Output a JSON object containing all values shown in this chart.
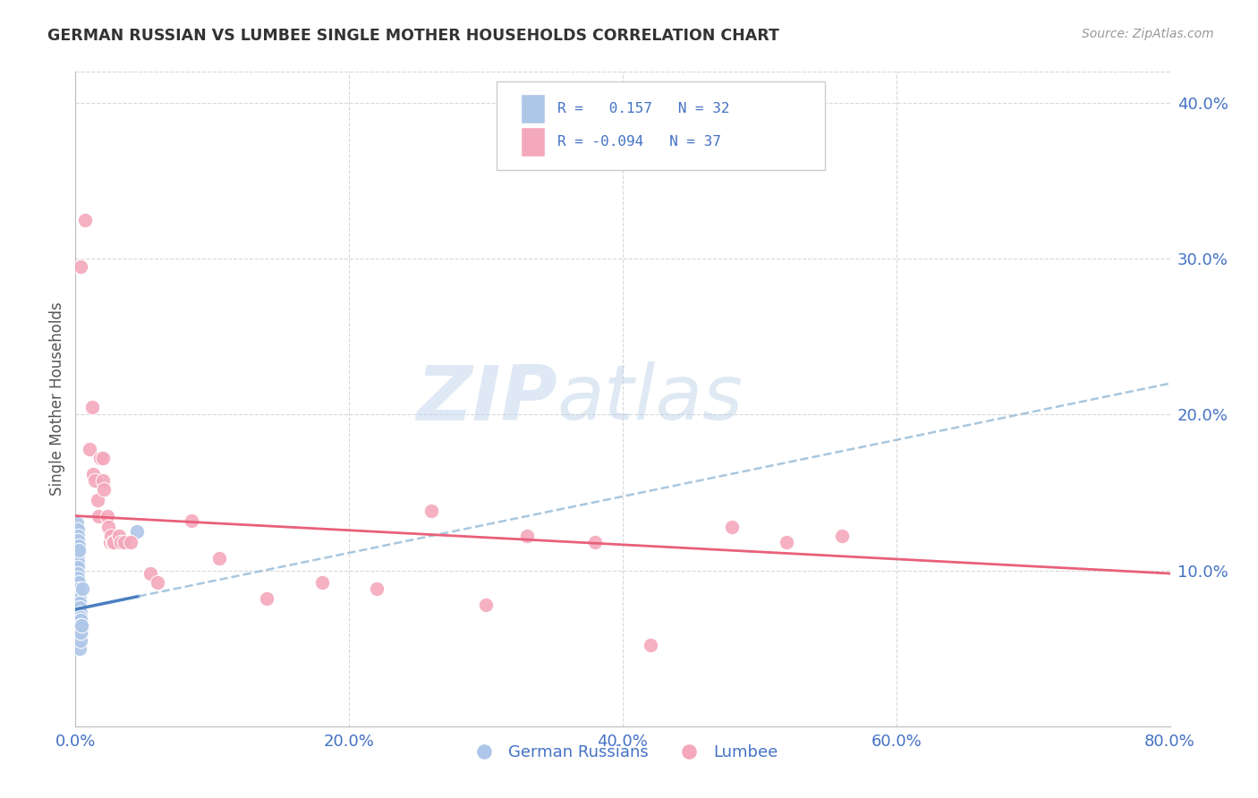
{
  "title": "GERMAN RUSSIAN VS LUMBEE SINGLE MOTHER HOUSEHOLDS CORRELATION CHART",
  "source": "Source: ZipAtlas.com",
  "ylabel": "Single Mother Households",
  "watermark_zip": "ZIP",
  "watermark_atlas": "atlas",
  "xlim": [
    0.0,
    0.8
  ],
  "ylim": [
    0.0,
    0.42
  ],
  "yticks": [
    0.1,
    0.2,
    0.3,
    0.4
  ],
  "ytick_labels": [
    "10.0%",
    "20.0%",
    "30.0%",
    "40.0%"
  ],
  "xticks": [
    0.0,
    0.2,
    0.4,
    0.6,
    0.8
  ],
  "legend_r_blue": "R =   0.157",
  "legend_n_blue": "N = 32",
  "legend_r_pink": "R = -0.094",
  "legend_n_pink": "N = 37",
  "blue_color": "#aec6e8",
  "pink_color": "#f4a8bc",
  "blue_line_color": "#4a7fc1",
  "blue_dash_color": "#9bbdd8",
  "pink_line_color": "#e8607a",
  "blue_scatter": [
    [
      0.0008,
      0.115
    ],
    [
      0.001,
      0.118
    ],
    [
      0.0012,
      0.112
    ],
    [
      0.0015,
      0.108
    ],
    [
      0.0015,
      0.105
    ],
    [
      0.0018,
      0.102
    ],
    [
      0.002,
      0.098
    ],
    [
      0.002,
      0.095
    ],
    [
      0.0022,
      0.092
    ],
    [
      0.0025,
      0.088
    ],
    [
      0.0025,
      0.085
    ],
    [
      0.003,
      0.082
    ],
    [
      0.003,
      0.079
    ],
    [
      0.0032,
      0.076
    ],
    [
      0.0035,
      0.073
    ],
    [
      0.0035,
      0.07
    ],
    [
      0.004,
      0.068
    ],
    [
      0.004,
      0.065
    ],
    [
      0.0042,
      0.063
    ],
    [
      0.0045,
      0.06
    ],
    [
      0.0012,
      0.13
    ],
    [
      0.0015,
      0.126
    ],
    [
      0.0018,
      0.122
    ],
    [
      0.002,
      0.119
    ],
    [
      0.0022,
      0.116
    ],
    [
      0.0025,
      0.113
    ],
    [
      0.003,
      0.05
    ],
    [
      0.0035,
      0.055
    ],
    [
      0.004,
      0.06
    ],
    [
      0.0045,
      0.065
    ],
    [
      0.005,
      0.088
    ],
    [
      0.045,
      0.125
    ]
  ],
  "pink_scatter": [
    [
      0.004,
      0.295
    ],
    [
      0.007,
      0.325
    ],
    [
      0.01,
      0.178
    ],
    [
      0.012,
      0.205
    ],
    [
      0.013,
      0.162
    ],
    [
      0.014,
      0.158
    ],
    [
      0.016,
      0.145
    ],
    [
      0.017,
      0.135
    ],
    [
      0.018,
      0.172
    ],
    [
      0.02,
      0.172
    ],
    [
      0.02,
      0.158
    ],
    [
      0.021,
      0.152
    ],
    [
      0.023,
      0.135
    ],
    [
      0.024,
      0.128
    ],
    [
      0.025,
      0.118
    ],
    [
      0.026,
      0.122
    ],
    [
      0.027,
      0.118
    ],
    [
      0.028,
      0.118
    ],
    [
      0.032,
      0.122
    ],
    [
      0.033,
      0.118
    ],
    [
      0.036,
      0.118
    ],
    [
      0.04,
      0.118
    ],
    [
      0.055,
      0.098
    ],
    [
      0.06,
      0.092
    ],
    [
      0.085,
      0.132
    ],
    [
      0.105,
      0.108
    ],
    [
      0.14,
      0.082
    ],
    [
      0.18,
      0.092
    ],
    [
      0.22,
      0.088
    ],
    [
      0.26,
      0.138
    ],
    [
      0.3,
      0.078
    ],
    [
      0.33,
      0.122
    ],
    [
      0.38,
      0.118
    ],
    [
      0.42,
      0.052
    ],
    [
      0.48,
      0.128
    ],
    [
      0.52,
      0.118
    ],
    [
      0.56,
      0.122
    ]
  ],
  "background_color": "#ffffff",
  "grid_color": "#d8d8d8"
}
